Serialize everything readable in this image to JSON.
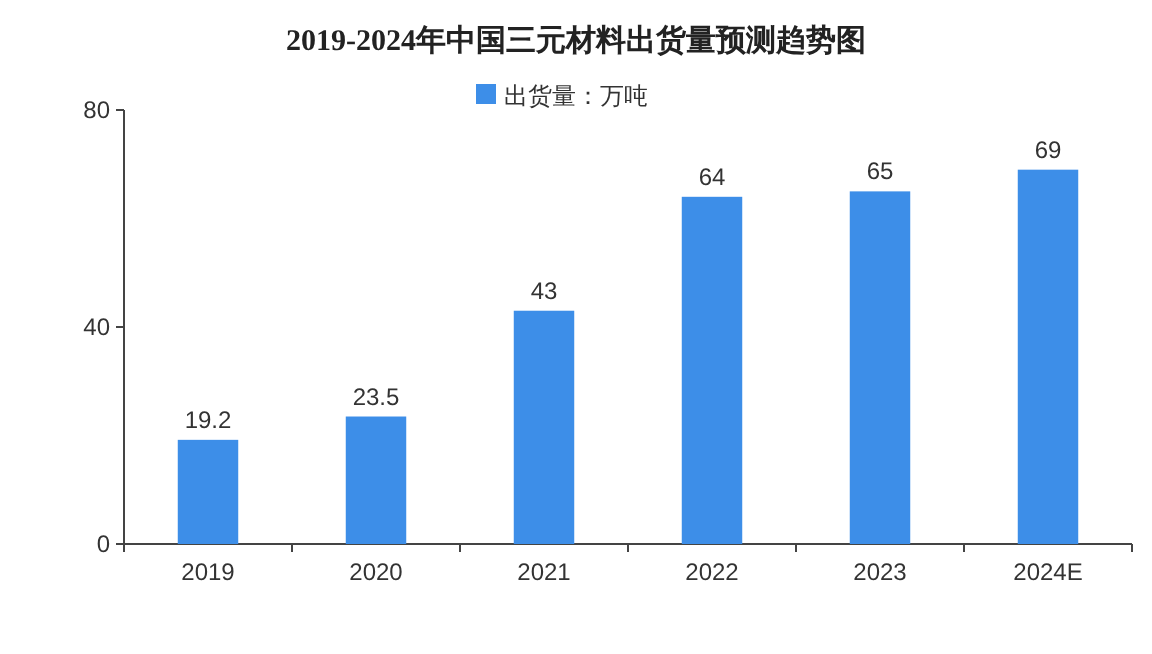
{
  "chart_data": {
    "type": "bar",
    "title": "2019-2024年中国三元材料出货量预测趋势图",
    "categories": [
      "2019",
      "2020",
      "2021",
      "2022",
      "2023",
      "2024E"
    ],
    "series": [
      {
        "name": "出货量：万吨",
        "color": "#3d8ee8",
        "values": [
          19.2,
          23.5,
          43,
          64,
          65,
          69
        ]
      }
    ],
    "ylim": [
      0,
      80
    ],
    "yticks": [
      0,
      40,
      80
    ],
    "data_labels": true,
    "legend": "top"
  }
}
